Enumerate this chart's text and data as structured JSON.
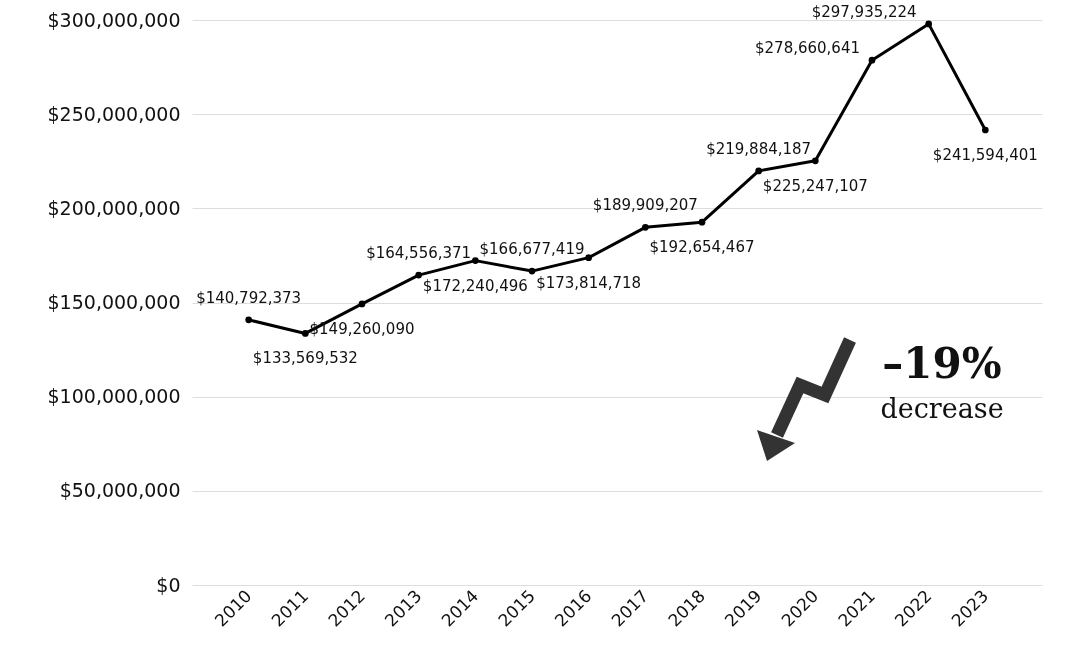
{
  "chart_data": {
    "type": "line",
    "categories": [
      "2010",
      "2011",
      "2012",
      "2013",
      "2014",
      "2015",
      "2016",
      "2017",
      "2018",
      "2019",
      "2020",
      "2021",
      "2022",
      "2023"
    ],
    "series": [
      {
        "color": "#000000",
        "values": [
          140792373,
          133569532,
          149260090,
          164556371,
          172240496,
          166677419,
          173814718,
          189909207,
          192654467,
          219884187,
          225247107,
          278660641,
          297935224,
          241594401
        ],
        "value_labels": [
          "$140,792,373",
          "$133,569,532",
          "$149,260,090",
          "$164,556,371",
          "$172,240,496",
          "$166,677,419",
          "$173,814,718",
          "$189,909,207",
          "$192,654,467",
          "$219,884,187",
          "$225,247,107",
          "$278,660,641",
          "$297,935,224",
          "$241,594,401"
        ]
      }
    ],
    "ylim": [
      0,
      300000000
    ],
    "yticks": [
      {
        "value": 0,
        "label": "$0"
      },
      {
        "value": 50000000,
        "label": "$50,000,000"
      },
      {
        "value": 100000000,
        "label": "$100,000,000"
      },
      {
        "value": 150000000,
        "label": "$150,000,000"
      },
      {
        "value": 200000000,
        "label": "$200,000,000"
      },
      {
        "value": 250000000,
        "label": "$250,000,000"
      },
      {
        "value": 300000000,
        "label": "$300,000,000"
      }
    ],
    "grid": "y",
    "marker": "circle",
    "line_style": "solid",
    "annotations": [
      "–19%",
      "decrease"
    ]
  }
}
